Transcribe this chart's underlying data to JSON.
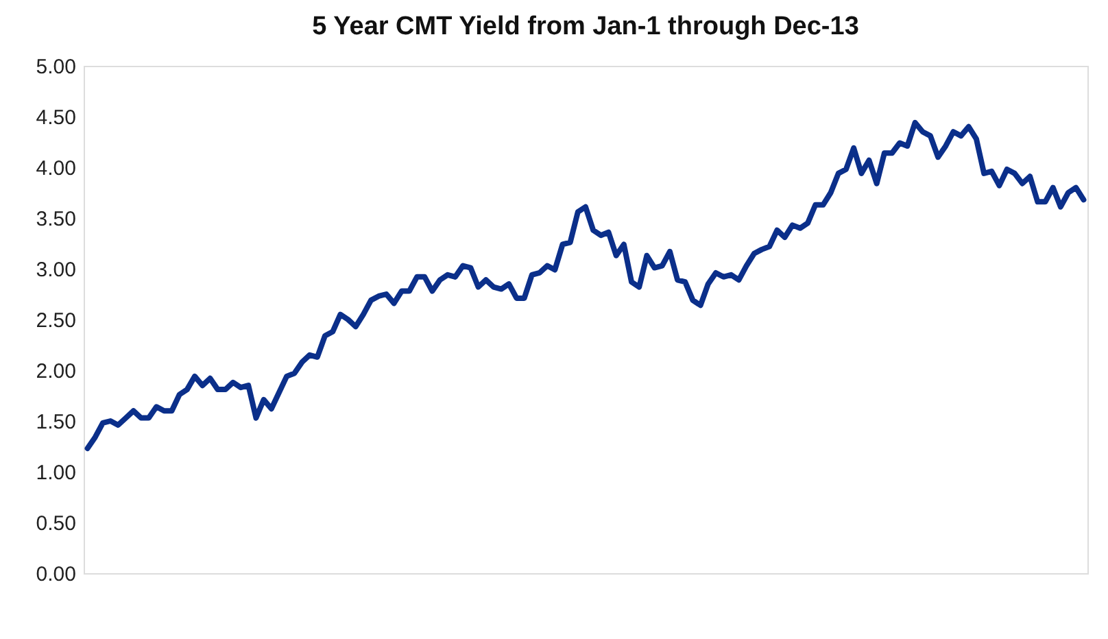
{
  "chart_data": {
    "type": "line",
    "title": "5 Year CMT Yield from Jan-1 through Dec-13",
    "categories": [
      null,
      null,
      null,
      null,
      null,
      null,
      null,
      null,
      null,
      null,
      null,
      null,
      null,
      null,
      null,
      null,
      null,
      null,
      null,
      null,
      null,
      null,
      null,
      null,
      null,
      null,
      null,
      null,
      null,
      null,
      null,
      null,
      null,
      null,
      null,
      null,
      null,
      null,
      null,
      null,
      null,
      null,
      null,
      null,
      null,
      null,
      null,
      null,
      null,
      null,
      null,
      null,
      null,
      null,
      null,
      null,
      null,
      null,
      null,
      null,
      null,
      null,
      null,
      null,
      null,
      null,
      null,
      null,
      null,
      null,
      null,
      null,
      null,
      null,
      null,
      null,
      null,
      null,
      null,
      null,
      null,
      null,
      null,
      null,
      null,
      null,
      null,
      null,
      null,
      null,
      null,
      null,
      null,
      null,
      null,
      null,
      null,
      null,
      null,
      null,
      null,
      null,
      null,
      null,
      null,
      null,
      null,
      null,
      null,
      null,
      null,
      null,
      null,
      null,
      null,
      null,
      null,
      null,
      null,
      null,
      null,
      null,
      null,
      null,
      null,
      null,
      null,
      null,
      null,
      null,
      null
    ],
    "series": [
      {
        "color": "#0b2f8a",
        "values": [
          1.23,
          1.34,
          1.48,
          1.5,
          1.46,
          1.53,
          1.6,
          1.53,
          1.53,
          1.64,
          1.6,
          1.6,
          1.76,
          1.81,
          1.94,
          1.85,
          1.92,
          1.81,
          1.81,
          1.88,
          1.83,
          1.85,
          1.53,
          1.71,
          1.62,
          1.78,
          1.94,
          1.97,
          2.08,
          2.15,
          2.13,
          2.34,
          2.38,
          2.55,
          2.5,
          2.43,
          2.55,
          2.69,
          2.73,
          2.75,
          2.66,
          2.78,
          2.78,
          2.92,
          2.92,
          2.78,
          2.89,
          2.94,
          2.92,
          3.03,
          3.01,
          2.82,
          2.89,
          2.82,
          2.8,
          2.85,
          2.71,
          2.71,
          2.94,
          2.96,
          3.03,
          2.99,
          3.24,
          3.26,
          3.56,
          3.61,
          3.38,
          3.33,
          3.36,
          3.13,
          3.24,
          2.87,
          2.82,
          3.13,
          3.01,
          3.03,
          3.17,
          2.89,
          2.87,
          2.69,
          2.64,
          2.85,
          2.96,
          2.92,
          2.94,
          2.89,
          3.03,
          3.15,
          3.19,
          3.22,
          3.38,
          3.31,
          3.43,
          3.4,
          3.45,
          3.63,
          3.63,
          3.75,
          3.94,
          3.98,
          4.19,
          3.94,
          4.07,
          3.84,
          4.14,
          4.14,
          4.24,
          4.21,
          4.44,
          4.35,
          4.31,
          4.1,
          4.21,
          4.35,
          4.31,
          4.4,
          4.28,
          3.94,
          3.96,
          3.82,
          3.98,
          3.94,
          3.84,
          3.91,
          3.66,
          3.66,
          3.8,
          3.61,
          3.75,
          3.8,
          3.68
        ]
      }
    ],
    "ylim": [
      0,
      5
    ],
    "yticks": [
      {
        "value": 0,
        "label": "0.00"
      },
      {
        "value": 0.5,
        "label": "0.50"
      },
      {
        "value": 1,
        "label": "1.00"
      },
      {
        "value": 1.5,
        "label": "1.50"
      },
      {
        "value": 2,
        "label": "2.00"
      },
      {
        "value": 2.5,
        "label": "2.50"
      },
      {
        "value": 3,
        "label": "3.00"
      },
      {
        "value": 3.5,
        "label": "3.50"
      },
      {
        "value": 4,
        "label": "4.00"
      },
      {
        "value": 4.5,
        "label": "4.50"
      },
      {
        "value": 5,
        "label": "5.00"
      }
    ],
    "tick_labels": "y",
    "grid": false,
    "legend": false,
    "marker": "none",
    "line_style": "solid"
  }
}
